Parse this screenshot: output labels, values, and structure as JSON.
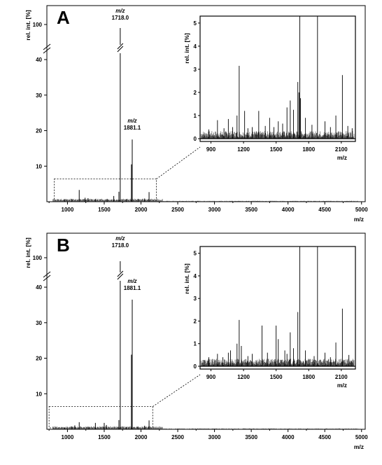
{
  "chart_data": [
    {
      "type": "line",
      "panel_label": "A",
      "xlabel": "m/z",
      "ylabel": "rel. int. [%]",
      "x_ticks": [
        1000,
        1500,
        2000,
        2500,
        3000,
        3500,
        4000,
        4500,
        5000
      ],
      "xlim": [
        720,
        5050
      ],
      "y_ticks": [
        10,
        20,
        30,
        40
      ],
      "y_break_tick": 100,
      "ylim": [
        0,
        41
      ],
      "peaks": [
        {
          "x": 1718.0,
          "y": 100,
          "broken": true
        },
        {
          "x": 1881.1,
          "y": 17.5
        },
        {
          "x": 1870,
          "y": 10.5
        },
        {
          "x": 1700,
          "y": 2.8
        },
        {
          "x": 1160,
          "y": 3.3
        },
        {
          "x": 2110,
          "y": 2.7
        },
        {
          "x": 1630,
          "y": 1.6
        },
        {
          "x": 1540,
          "y": 0.8
        },
        {
          "x": 1380,
          "y": 0.8
        },
        {
          "x": 1280,
          "y": 1.0
        },
        {
          "x": 1240,
          "y": 1.1
        },
        {
          "x": 1060,
          "y": 0.8
        },
        {
          "x": 960,
          "y": 0.6
        },
        {
          "x": 2050,
          "y": 0.9
        },
        {
          "x": 1960,
          "y": 0.8
        },
        {
          "x": 1800,
          "y": 0.7
        }
      ],
      "annotations": [
        {
          "label": "m/z",
          "value": "1718.0",
          "x": 1718.0
        },
        {
          "label": "m/z",
          "value": "1881.1",
          "x": 1881.1
        }
      ],
      "zoom_box": {
        "x": [
          820,
          2210
        ],
        "y": [
          0,
          6.4
        ]
      },
      "inset": {
        "xlabel": "m/z",
        "ylabel": "rel. int. [%]",
        "x_ticks": [
          900,
          1200,
          1500,
          1800,
          2100
        ],
        "xlim": [
          800,
          2230
        ],
        "y_ticks": [
          0,
          1,
          2,
          3,
          4,
          5
        ],
        "ylim": [
          0,
          5.3
        ],
        "peaks": [
          {
            "x": 1718,
            "y": 5.3
          },
          {
            "x": 1881,
            "y": 5.3
          },
          {
            "x": 1700,
            "y": 2.45
          },
          {
            "x": 1710,
            "y": 2.0
          },
          {
            "x": 1725,
            "y": 1.75
          },
          {
            "x": 1160,
            "y": 3.15
          },
          {
            "x": 2110,
            "y": 2.75
          },
          {
            "x": 1630,
            "y": 1.65
          },
          {
            "x": 1600,
            "y": 1.35
          },
          {
            "x": 1660,
            "y": 1.25
          },
          {
            "x": 1210,
            "y": 1.2
          },
          {
            "x": 1340,
            "y": 1.2
          },
          {
            "x": 2050,
            "y": 1.0
          },
          {
            "x": 1140,
            "y": 1.0
          },
          {
            "x": 1060,
            "y": 0.85
          },
          {
            "x": 960,
            "y": 0.8
          },
          {
            "x": 1440,
            "y": 0.9
          },
          {
            "x": 1520,
            "y": 0.75
          },
          {
            "x": 1560,
            "y": 0.65
          },
          {
            "x": 1280,
            "y": 0.5
          },
          {
            "x": 1400,
            "y": 0.55
          },
          {
            "x": 1480,
            "y": 0.5
          },
          {
            "x": 1770,
            "y": 0.9
          },
          {
            "x": 1830,
            "y": 0.6
          },
          {
            "x": 1950,
            "y": 0.75
          },
          {
            "x": 2000,
            "y": 0.5
          },
          {
            "x": 2160,
            "y": 0.55
          },
          {
            "x": 2200,
            "y": 0.45
          },
          {
            "x": 1020,
            "y": 0.45
          },
          {
            "x": 1100,
            "y": 0.5
          },
          {
            "x": 1240,
            "y": 0.45
          },
          {
            "x": 880,
            "y": 0.4
          }
        ]
      }
    },
    {
      "type": "line",
      "panel_label": "B",
      "xlabel": "m/z",
      "ylabel": "rel. int. [%]",
      "x_ticks": [
        1000,
        1500,
        2000,
        2500,
        3000,
        3500,
        4000,
        4500,
        5000
      ],
      "xlim": [
        720,
        5050
      ],
      "y_ticks": [
        10,
        20,
        30,
        40
      ],
      "y_break_tick": 100,
      "ylim": [
        0,
        41
      ],
      "peaks": [
        {
          "x": 1718.0,
          "y": 100,
          "broken": true
        },
        {
          "x": 1881.1,
          "y": 36.5
        },
        {
          "x": 1870,
          "y": 21.0
        },
        {
          "x": 1700,
          "y": 2.6
        },
        {
          "x": 1160,
          "y": 2.0
        },
        {
          "x": 2110,
          "y": 2.5
        },
        {
          "x": 1380,
          "y": 1.8
        },
        {
          "x": 1500,
          "y": 1.8
        },
        {
          "x": 1530,
          "y": 1.2
        },
        {
          "x": 1100,
          "y": 1.1
        },
        {
          "x": 1060,
          "y": 0.8
        },
        {
          "x": 1290,
          "y": 0.7
        },
        {
          "x": 1960,
          "y": 0.7
        },
        {
          "x": 2050,
          "y": 1.0
        },
        {
          "x": 960,
          "y": 0.5
        },
        {
          "x": 1800,
          "y": 0.6
        }
      ],
      "annotations": [
        {
          "label": "m/z",
          "value": "1718.0",
          "x": 1718.0
        },
        {
          "label": "m/z",
          "value": "1881.1",
          "x": 1881.1
        }
      ],
      "zoom_box": {
        "x": [
          750,
          2160
        ],
        "y": [
          0,
          6.4
        ]
      },
      "inset": {
        "xlabel": "m/z",
        "ylabel": "rel. int. [%]",
        "x_ticks": [
          900,
          1200,
          1500,
          1800,
          2100
        ],
        "xlim": [
          800,
          2230
        ],
        "y_ticks": [
          0,
          1,
          2,
          3,
          4,
          5
        ],
        "ylim": [
          0,
          5.3
        ],
        "peaks": [
          {
            "x": 1718,
            "y": 5.3
          },
          {
            "x": 1881,
            "y": 5.3
          },
          {
            "x": 1700,
            "y": 2.4
          },
          {
            "x": 1160,
            "y": 2.05
          },
          {
            "x": 1140,
            "y": 1.0
          },
          {
            "x": 1180,
            "y": 0.9
          },
          {
            "x": 1370,
            "y": 1.8
          },
          {
            "x": 1500,
            "y": 1.8
          },
          {
            "x": 1520,
            "y": 1.2
          },
          {
            "x": 1630,
            "y": 1.5
          },
          {
            "x": 2110,
            "y": 2.55
          },
          {
            "x": 2050,
            "y": 1.05
          },
          {
            "x": 1080,
            "y": 0.7
          },
          {
            "x": 1060,
            "y": 0.6
          },
          {
            "x": 960,
            "y": 0.55
          },
          {
            "x": 1280,
            "y": 0.55
          },
          {
            "x": 1420,
            "y": 0.6
          },
          {
            "x": 1580,
            "y": 0.7
          },
          {
            "x": 1660,
            "y": 0.8
          },
          {
            "x": 1600,
            "y": 0.55
          },
          {
            "x": 1770,
            "y": 0.7
          },
          {
            "x": 1950,
            "y": 0.6
          },
          {
            "x": 2170,
            "y": 0.5
          },
          {
            "x": 880,
            "y": 0.4
          },
          {
            "x": 1010,
            "y": 0.4
          },
          {
            "x": 1240,
            "y": 0.45
          },
          {
            "x": 1850,
            "y": 0.45
          },
          {
            "x": 2000,
            "y": 0.4
          }
        ]
      }
    }
  ]
}
